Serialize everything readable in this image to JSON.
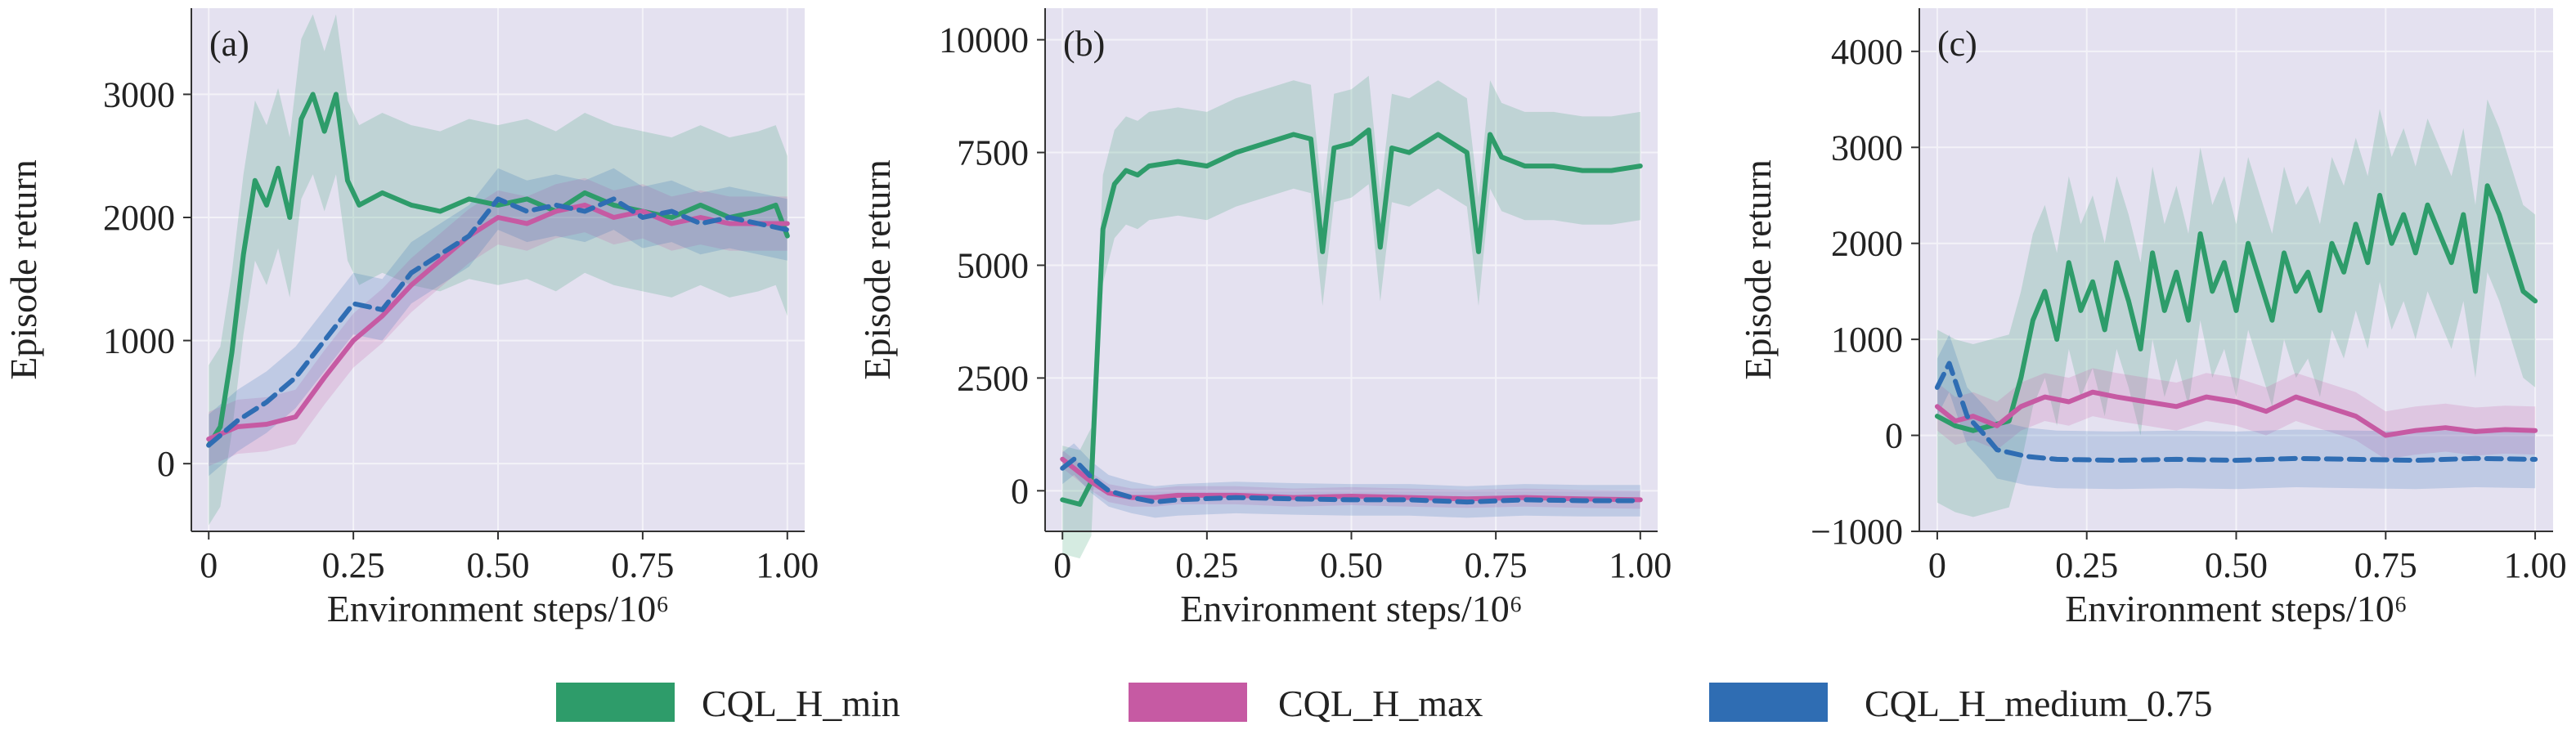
{
  "figure": {
    "legend": [
      {
        "label": "CQL_H_min",
        "color": "#2e9c6a"
      },
      {
        "label": "CQL_H_max",
        "color": "#c65aa3"
      },
      {
        "label": "CQL_H_medium_0.75",
        "color": "#2f6db3"
      }
    ]
  },
  "chart_data": [
    {
      "type": "line",
      "panel_tag": "(a)",
      "xlabel": "Environment steps/10⁶",
      "ylabel": "Episode return",
      "xlim": [
        -0.03,
        1.03
      ],
      "ylim": [
        -550,
        3700
      ],
      "xticks": [
        0,
        0.25,
        0.5,
        0.75,
        1.0
      ],
      "xtick_labels": [
        "0",
        "0.25",
        "0.50",
        "0.75",
        "1.00"
      ],
      "yticks": [
        0,
        1000,
        2000,
        3000
      ],
      "ytick_labels": [
        "0",
        "1000",
        "2000",
        "3000"
      ],
      "grid": true,
      "legend_position": "bottom",
      "series": [
        {
          "name": "CQL_H_min",
          "color": "#2e9c6a",
          "dash": "solid",
          "shade": 650,
          "x": [
            0,
            0.02,
            0.04,
            0.06,
            0.08,
            0.1,
            0.12,
            0.14,
            0.16,
            0.18,
            0.2,
            0.22,
            0.24,
            0.26,
            0.3,
            0.35,
            0.4,
            0.45,
            0.5,
            0.55,
            0.6,
            0.65,
            0.7,
            0.75,
            0.8,
            0.85,
            0.9,
            0.95,
            0.98,
            1.0
          ],
          "y": [
            150,
            300,
            900,
            1700,
            2300,
            2100,
            2400,
            2000,
            2800,
            3000,
            2700,
            3000,
            2300,
            2100,
            2200,
            2100,
            2050,
            2150,
            2100,
            2150,
            2050,
            2200,
            2100,
            2050,
            2000,
            2100,
            2000,
            2050,
            2100,
            1850
          ]
        },
        {
          "name": "CQL_H_max",
          "color": "#c65aa3",
          "dash": "solid",
          "shade": 220,
          "x": [
            0,
            0.05,
            0.1,
            0.15,
            0.2,
            0.25,
            0.3,
            0.35,
            0.4,
            0.45,
            0.5,
            0.55,
            0.6,
            0.65,
            0.7,
            0.75,
            0.8,
            0.85,
            0.9,
            0.95,
            1.0
          ],
          "y": [
            200,
            300,
            320,
            380,
            700,
            1000,
            1200,
            1450,
            1650,
            1850,
            2000,
            1950,
            2050,
            2100,
            2000,
            2050,
            1950,
            2000,
            1950,
            1950,
            1950
          ]
        },
        {
          "name": "CQL_H_medium_0.75",
          "color": "#2f6db3",
          "dash": "dashed",
          "shade": 250,
          "x": [
            0,
            0.05,
            0.1,
            0.15,
            0.2,
            0.25,
            0.3,
            0.35,
            0.4,
            0.45,
            0.5,
            0.55,
            0.6,
            0.65,
            0.7,
            0.75,
            0.8,
            0.85,
            0.9,
            0.95,
            1.0
          ],
          "y": [
            150,
            350,
            500,
            700,
            1000,
            1300,
            1250,
            1550,
            1700,
            1850,
            2150,
            2050,
            2100,
            2050,
            2150,
            2000,
            2050,
            1950,
            2000,
            1950,
            1900
          ]
        }
      ]
    },
    {
      "type": "line",
      "panel_tag": "(b)",
      "xlabel": "Environment steps/10⁶",
      "ylabel": "Episode return",
      "xlim": [
        -0.03,
        1.03
      ],
      "ylim": [
        -900,
        10700
      ],
      "xticks": [
        0,
        0.25,
        0.5,
        0.75,
        1.0
      ],
      "xtick_labels": [
        "0",
        "0.25",
        "0.50",
        "0.75",
        "1.00"
      ],
      "yticks": [
        0,
        2500,
        5000,
        7500,
        10000
      ],
      "ytick_labels": [
        "0",
        "2500",
        "5000",
        "7500",
        "10000"
      ],
      "grid": true,
      "legend_position": "bottom",
      "series": [
        {
          "name": "CQL_H_min",
          "color": "#2e9c6a",
          "dash": "solid",
          "shade": 1200,
          "x": [
            0,
            0.03,
            0.05,
            0.07,
            0.09,
            0.11,
            0.13,
            0.15,
            0.2,
            0.25,
            0.3,
            0.35,
            0.4,
            0.43,
            0.45,
            0.47,
            0.5,
            0.53,
            0.55,
            0.57,
            0.6,
            0.65,
            0.7,
            0.72,
            0.74,
            0.76,
            0.8,
            0.85,
            0.9,
            0.95,
            1.0
          ],
          "y": [
            -200,
            -300,
            200,
            5800,
            6800,
            7100,
            7000,
            7200,
            7300,
            7200,
            7500,
            7700,
            7900,
            7800,
            5300,
            7600,
            7700,
            8000,
            5400,
            7600,
            7500,
            7900,
            7500,
            5300,
            7900,
            7400,
            7200,
            7200,
            7100,
            7100,
            7200
          ]
        },
        {
          "name": "CQL_H_max",
          "color": "#c65aa3",
          "dash": "solid",
          "shade": 200,
          "x": [
            0,
            0.02,
            0.05,
            0.08,
            0.12,
            0.16,
            0.2,
            0.3,
            0.4,
            0.5,
            0.6,
            0.7,
            0.8,
            0.9,
            1.0
          ],
          "y": [
            700,
            500,
            200,
            -50,
            -150,
            -150,
            -100,
            -100,
            -150,
            -120,
            -150,
            -180,
            -150,
            -180,
            -200
          ]
        },
        {
          "name": "CQL_H_medium_0.75",
          "color": "#2f6db3",
          "dash": "dashed",
          "shade": 350,
          "x": [
            0,
            0.02,
            0.05,
            0.08,
            0.12,
            0.16,
            0.2,
            0.3,
            0.4,
            0.5,
            0.6,
            0.7,
            0.8,
            0.9,
            1.0
          ],
          "y": [
            500,
            700,
            300,
            0,
            -150,
            -250,
            -200,
            -150,
            -180,
            -200,
            -200,
            -250,
            -200,
            -220,
            -220
          ]
        }
      ]
    },
    {
      "type": "line",
      "panel_tag": "(c)",
      "xlabel": "Environment steps/10⁶",
      "ylabel": "Episode return",
      "xlim": [
        -0.03,
        1.03
      ],
      "ylim": [
        -1000,
        4450
      ],
      "xticks": [
        0,
        0.25,
        0.5,
        0.75,
        1.0
      ],
      "xtick_labels": [
        "0",
        "0.25",
        "0.50",
        "0.75",
        "1.00"
      ],
      "yticks": [
        -1000,
        0,
        1000,
        2000,
        3000,
        4000
      ],
      "ytick_labels": [
        "−1000",
        "0",
        "1000",
        "2000",
        "3000",
        "4000"
      ],
      "grid": true,
      "legend_position": "bottom",
      "series": [
        {
          "name": "CQL_H_min",
          "color": "#2e9c6a",
          "dash": "solid",
          "shade": 900,
          "x": [
            0,
            0.03,
            0.06,
            0.09,
            0.12,
            0.14,
            0.16,
            0.18,
            0.2,
            0.22,
            0.24,
            0.26,
            0.28,
            0.3,
            0.32,
            0.34,
            0.36,
            0.38,
            0.4,
            0.42,
            0.44,
            0.46,
            0.48,
            0.5,
            0.52,
            0.54,
            0.56,
            0.58,
            0.6,
            0.62,
            0.64,
            0.66,
            0.68,
            0.7,
            0.72,
            0.74,
            0.76,
            0.78,
            0.8,
            0.82,
            0.84,
            0.86,
            0.88,
            0.9,
            0.92,
            0.94,
            0.96,
            0.98,
            1.0
          ],
          "y": [
            200,
            100,
            50,
            100,
            150,
            600,
            1200,
            1500,
            1000,
            1800,
            1300,
            1600,
            1100,
            1800,
            1400,
            900,
            1900,
            1300,
            1700,
            1200,
            2100,
            1500,
            1800,
            1300,
            2000,
            1600,
            1200,
            1900,
            1500,
            1700,
            1300,
            2000,
            1700,
            2200,
            1800,
            2500,
            2000,
            2300,
            1900,
            2400,
            2100,
            1800,
            2300,
            1500,
            2600,
            2300,
            1900,
            1500,
            1400
          ]
        },
        {
          "name": "CQL_H_max",
          "color": "#c65aa3",
          "dash": "solid",
          "shade": 250,
          "x": [
            0,
            0.03,
            0.06,
            0.1,
            0.14,
            0.18,
            0.22,
            0.26,
            0.3,
            0.35,
            0.4,
            0.45,
            0.5,
            0.55,
            0.6,
            0.65,
            0.7,
            0.75,
            0.8,
            0.85,
            0.9,
            0.95,
            1.0
          ],
          "y": [
            300,
            150,
            200,
            100,
            300,
            400,
            350,
            450,
            400,
            350,
            300,
            400,
            350,
            250,
            400,
            300,
            200,
            0,
            50,
            80,
            40,
            60,
            50
          ]
        },
        {
          "name": "CQL_H_medium_0.75",
          "color": "#2f6db3",
          "dash": "dashed",
          "shade": 300,
          "x": [
            0,
            0.02,
            0.05,
            0.08,
            0.1,
            0.15,
            0.2,
            0.3,
            0.4,
            0.5,
            0.6,
            0.7,
            0.8,
            0.9,
            1.0
          ],
          "y": [
            500,
            750,
            200,
            0,
            -150,
            -220,
            -250,
            -260,
            -250,
            -260,
            -240,
            -250,
            -260,
            -240,
            -250
          ]
        }
      ]
    }
  ]
}
